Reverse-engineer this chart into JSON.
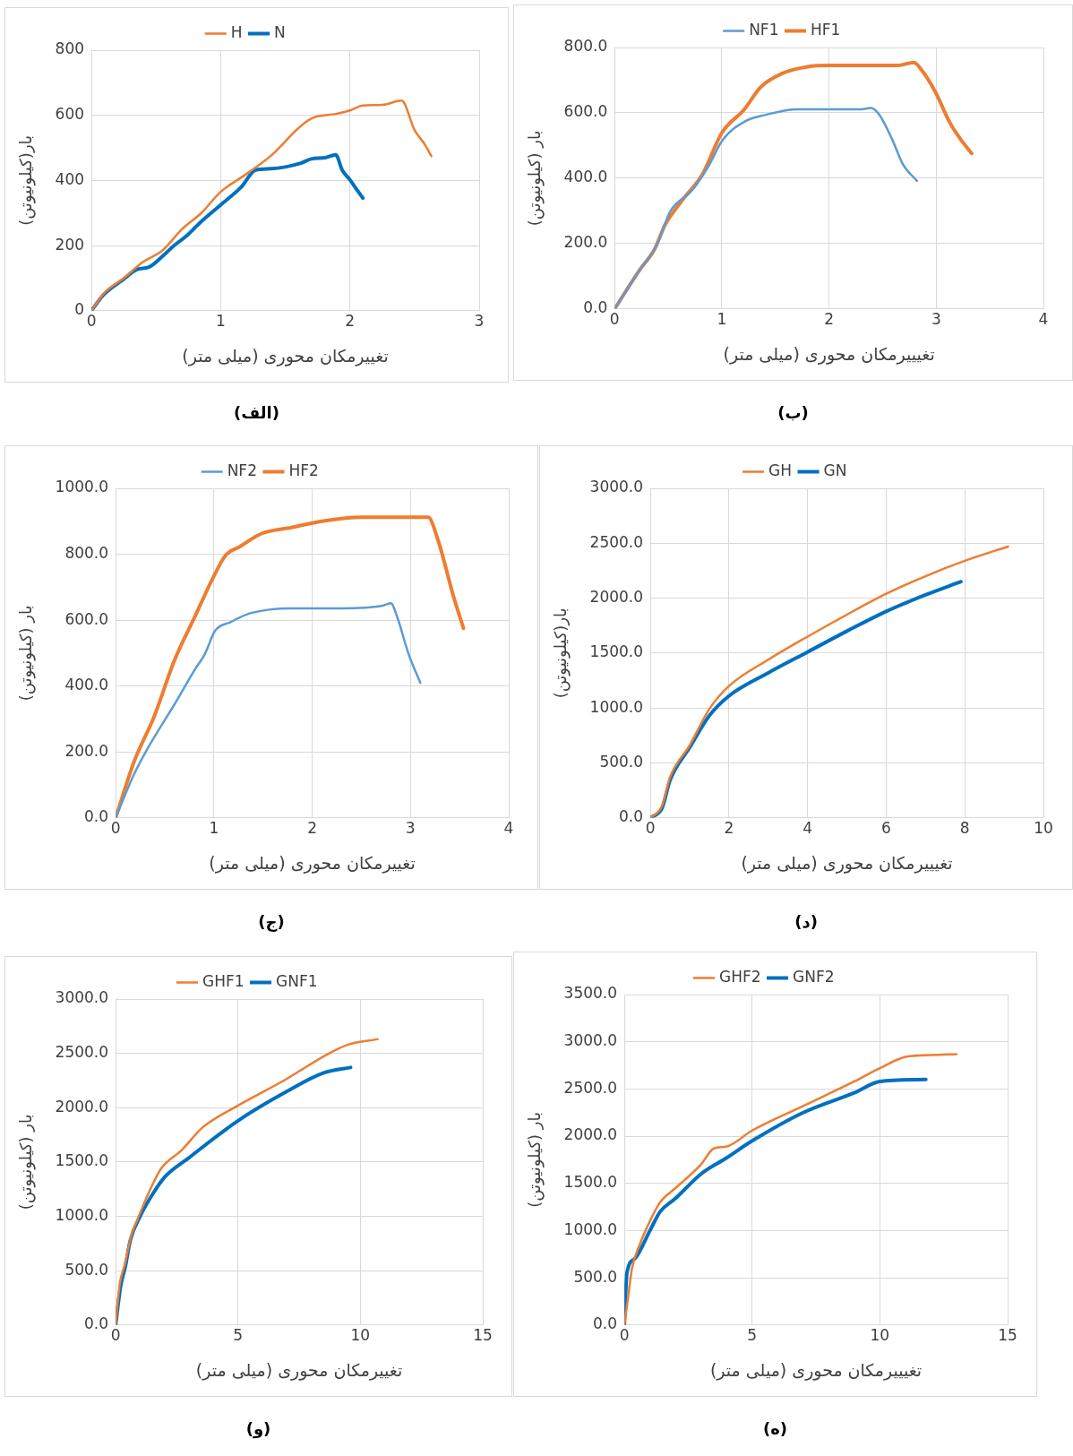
{
  "chart_data": [
    {
      "type": "line",
      "xlabel": "تغییرمکان محوری (میلی متر)",
      "ylabel": "بار(کیلونیوتن)",
      "annotations": [
        "(الف)"
      ],
      "legend": "top",
      "grid": true,
      "marker": "none",
      "line_style": "solid",
      "xlim": [
        0,
        3
      ],
      "xticks": [
        0,
        1,
        2,
        3
      ],
      "ylim": [
        0,
        800
      ],
      "yticks": [
        0,
        200,
        400,
        600,
        800
      ],
      "series": [
        {
          "name": "H",
          "color": "#ed7d31",
          "x": [
            0,
            0.1,
            0.25,
            0.4,
            0.55,
            0.7,
            0.85,
            1.0,
            1.2,
            1.4,
            1.6,
            1.7,
            1.9,
            2.0,
            2.1,
            2.25,
            2.4,
            2.5,
            2.58,
            2.63
          ],
          "values": [
            0,
            55,
            100,
            150,
            185,
            250,
            300,
            365,
            420,
            480,
            560,
            590,
            605,
            615,
            630,
            632,
            645,
            555,
            510,
            475
          ]
        },
        {
          "name": "N",
          "color": "#0070c0",
          "x": [
            0,
            0.09,
            0.24,
            0.36,
            0.44,
            0.55,
            0.63,
            0.74,
            0.85,
            1.0,
            1.16,
            1.27,
            1.39,
            1.62,
            1.7,
            1.81,
            1.89,
            1.94,
            2.0,
            2.06,
            2.1
          ],
          "values": [
            0,
            47,
            94,
            128,
            133,
            167,
            197,
            231,
            274,
            325,
            380,
            432,
            436,
            453,
            466,
            470,
            479,
            432,
            402,
            368,
            346
          ]
        }
      ]
    },
    {
      "type": "line",
      "xlabel": "تغیییرمکان محوری (میلی متر)",
      "ylabel": "بار (کیلونیوتن)",
      "annotations": [
        "(ب)"
      ],
      "legend": "top",
      "grid": true,
      "marker": "none",
      "line_style": "solid",
      "xlim": [
        0,
        4
      ],
      "xticks": [
        0,
        1,
        2,
        3,
        4
      ],
      "ylim": [
        0,
        800
      ],
      "yticks": [
        {
          "value": 0,
          "label": "0.0"
        },
        {
          "value": 200,
          "label": "200.0"
        },
        {
          "value": 400,
          "label": "400.0"
        },
        {
          "value": 600,
          "label": "600.0"
        },
        {
          "value": 800,
          "label": "800.0"
        }
      ],
      "series": [
        {
          "name": "NF1",
          "color": "#5b9bd5",
          "x": [
            0,
            0.23,
            0.39,
            0.52,
            0.72,
            0.87,
            1.01,
            1.21,
            1.41,
            1.7,
            2.0,
            2.3,
            2.39,
            2.47,
            2.59,
            2.69,
            2.82
          ],
          "values": [
            0,
            118,
            194,
            299,
            362,
            434,
            518,
            573,
            594,
            611,
            611,
            611,
            615,
            594,
            518,
            442,
            392
          ]
        },
        {
          "name": "HF1",
          "color": "#ed7d31",
          "x": [
            0,
            0.23,
            0.37,
            0.47,
            0.62,
            0.82,
            1.0,
            1.21,
            1.36,
            1.56,
            1.8,
            2.0,
            2.3,
            2.64,
            2.79,
            2.87,
            2.99,
            3.13,
            3.23,
            3.33
          ],
          "values": [
            0,
            118,
            181,
            257,
            328,
            413,
            539,
            611,
            678,
            720,
            741,
            745,
            745,
            745,
            754,
            728,
            665,
            568,
            518,
            476
          ]
        }
      ]
    },
    {
      "type": "line",
      "xlabel": "تغییرمکان محوری (میلی متر)",
      "ylabel": "بار (کیلونیوتن)",
      "annotations": [
        "(ج)"
      ],
      "legend": "top",
      "grid": true,
      "marker": "none",
      "line_style": "solid",
      "xlim": [
        0,
        4
      ],
      "xticks": [
        0,
        1,
        2,
        3,
        4
      ],
      "ylim": [
        0,
        1000
      ],
      "yticks": [
        {
          "value": 0,
          "label": "0.0"
        },
        {
          "value": 200,
          "label": "200.0"
        },
        {
          "value": 400,
          "label": "400.0"
        },
        {
          "value": 600,
          "label": "600.0"
        },
        {
          "value": 800,
          "label": "800.0"
        },
        {
          "value": 1000,
          "label": "1000.0"
        }
      ],
      "series": [
        {
          "name": "NF2",
          "color": "#5b9bd5",
          "x": [
            0,
            0.19,
            0.34,
            0.6,
            0.81,
            0.91,
            1.01,
            1.17,
            1.37,
            1.79,
            2.3,
            2.72,
            2.8,
            2.87,
            2.98,
            3.1
          ],
          "values": [
            0,
            134,
            218,
            345,
            452,
            498,
            567,
            594,
            621,
            636,
            636,
            644,
            651,
            605,
            498,
            410
          ]
        },
        {
          "name": "HF2",
          "color": "#ed7d31",
          "x": [
            0,
            0.19,
            0.39,
            0.6,
            0.81,
            0.99,
            1.12,
            1.27,
            1.48,
            1.79,
            2.1,
            2.51,
            2.92,
            3.11,
            3.18,
            3.28,
            3.44,
            3.54
          ],
          "values": [
            0,
            172,
            306,
            479,
            613,
            728,
            797,
            824,
            862,
            881,
            900,
            912,
            912,
            912,
            912,
            843,
            670,
            575
          ]
        }
      ]
    },
    {
      "type": "line",
      "xlabel": "تغیییرمکان محوری (میلی متر)",
      "ylabel": "بار(کیلونیوتن)",
      "annotations": [
        "(د)"
      ],
      "legend": "top",
      "grid": true,
      "marker": "none",
      "line_style": "solid",
      "xlim": [
        0,
        10
      ],
      "xticks": [
        0,
        2,
        4,
        6,
        8,
        10
      ],
      "ylim": [
        0,
        3000
      ],
      "yticks": [
        {
          "value": 0,
          "label": "0.0"
        },
        {
          "value": 500,
          "label": "500.0"
        },
        {
          "value": 1000,
          "label": "1000.0"
        },
        {
          "value": 1500,
          "label": "1500.0"
        },
        {
          "value": 2000,
          "label": "2000.0"
        },
        {
          "value": 2500,
          "label": "2500.0"
        },
        {
          "value": 3000,
          "label": "3000.0"
        }
      ],
      "series": [
        {
          "name": "GH",
          "color": "#ed7d31",
          "x": [
            0,
            0.3,
            0.5,
            1,
            1.5,
            2,
            3,
            4,
            5,
            6,
            7,
            8,
            9.1
          ],
          "values": [
            0,
            110,
            370,
            660,
            990,
            1200,
            1440,
            1650,
            1850,
            2040,
            2200,
            2340,
            2470
          ]
        },
        {
          "name": "GN",
          "color": "#0070c0",
          "x": [
            0,
            0.3,
            0.5,
            1,
            1.5,
            2,
            3,
            4,
            5,
            6,
            7,
            7.9
          ],
          "values": [
            0,
            90,
            340,
            640,
            930,
            1110,
            1320,
            1510,
            1700,
            1880,
            2030,
            2150
          ]
        }
      ]
    },
    {
      "type": "line",
      "xlabel": "تغییرمکان محوری (میلی متر)",
      "ylabel": "بار (کیلونیوتن)",
      "annotations": [
        "(و)"
      ],
      "legend": "top",
      "grid": true,
      "marker": "none",
      "line_style": "solid",
      "xlim": [
        0,
        15
      ],
      "xticks": [
        0,
        5,
        10,
        15
      ],
      "ylim": [
        0,
        3000
      ],
      "yticks": [
        {
          "value": 0,
          "label": "0.0"
        },
        {
          "value": 500,
          "label": "500.0"
        },
        {
          "value": 1000,
          "label": "1000.0"
        },
        {
          "value": 1500,
          "label": "1500.0"
        },
        {
          "value": 2000,
          "label": "2000.0"
        },
        {
          "value": 2500,
          "label": "2500.0"
        },
        {
          "value": 3000,
          "label": "3000.0"
        }
      ],
      "series": [
        {
          "name": "GHF1",
          "color": "#ed7d31",
          "x": [
            0,
            0.17,
            0.38,
            0.6,
            1.0,
            1.44,
            1.86,
            2.7,
            3.56,
            5,
            6.95,
            8.64,
            9.5,
            10.7
          ],
          "values": [
            0,
            380,
            560,
            790,
            1030,
            1260,
            1440,
            1610,
            1820,
            2020,
            2260,
            2490,
            2580,
            2630
          ]
        },
        {
          "name": "GNF1",
          "color": "#0070c0",
          "x": [
            0,
            0.2,
            0.4,
            0.6,
            1.0,
            1.5,
            2,
            3,
            5,
            7,
            8.5,
            9.6
          ],
          "values": [
            0,
            350,
            540,
            780,
            1000,
            1200,
            1360,
            1540,
            1880,
            2150,
            2320,
            2370
          ]
        }
      ]
    },
    {
      "type": "line",
      "xlabel": "تغیییرمکان محوری (میلی متر)",
      "ylabel": "بار (کیلونیوتن)",
      "annotations": [
        "(ه)"
      ],
      "legend": "top",
      "grid": true,
      "marker": "none",
      "line_style": "solid",
      "xlim": [
        0,
        15
      ],
      "xticks": [
        0,
        5,
        10,
        15
      ],
      "ylim": [
        0,
        3500
      ],
      "yticks": [
        {
          "value": 0,
          "label": "0.0"
        },
        {
          "value": 500,
          "label": "500.0"
        },
        {
          "value": 1000,
          "label": "1000.0"
        },
        {
          "value": 1500,
          "label": "1500.0"
        },
        {
          "value": 2000,
          "label": "2000.0"
        },
        {
          "value": 2500,
          "label": "2500.0"
        },
        {
          "value": 3000,
          "label": "3000.0"
        },
        {
          "value": 3500,
          "label": "3500.0"
        }
      ],
      "series": [
        {
          "name": "GHF2",
          "color": "#ed7d31",
          "x": [
            0,
            0.15,
            0.3,
            0.6,
            1,
            1.4,
            2,
            3,
            3.5,
            4,
            5,
            7,
            9,
            10,
            11,
            12,
            13
          ],
          "values": [
            0,
            300,
            600,
            850,
            1100,
            1300,
            1450,
            1700,
            1870,
            1890,
            2060,
            2320,
            2580,
            2720,
            2840,
            2860,
            2870
          ]
        },
        {
          "name": "GNF2",
          "color": "#0070c0",
          "x": [
            0,
            0.1,
            0.4,
            1,
            1.4,
            2,
            3,
            4,
            5,
            7,
            9,
            10,
            11.8
          ],
          "values": [
            0,
            550,
            700,
            1000,
            1200,
            1340,
            1600,
            1770,
            1950,
            2250,
            2460,
            2580,
            2600
          ]
        }
      ]
    }
  ]
}
